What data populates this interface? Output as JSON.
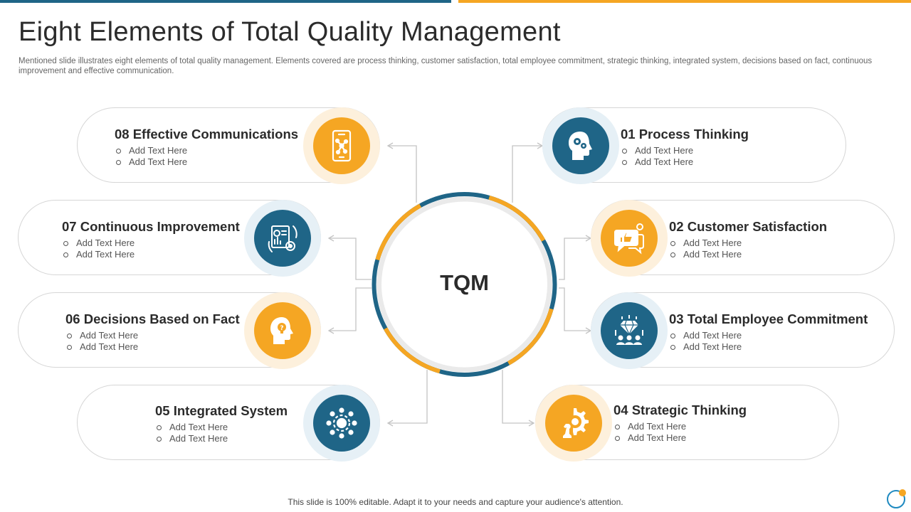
{
  "slide": {
    "title": "Eight Elements of Total Quality Management",
    "description": "Mentioned slide illustrates eight elements of total quality management. Elements covered are process thinking, customer satisfaction, total employee commitment, strategic thinking, integrated system, decisions based on fact, continuous improvement and effective communication.",
    "footer": "This slide is 100% editable. Adapt it to your needs and capture your audience's attention."
  },
  "center": {
    "label": "TQM"
  },
  "colors": {
    "blue": "#1f6587",
    "orange": "#f5a623",
    "arrow": "#c8c8c8",
    "border": "#d6d6d6"
  },
  "elements": {
    "e01": {
      "title": "01 Process Thinking",
      "bullets": [
        "Add Text Here",
        "Add Text Here"
      ],
      "icon": "head-gears-icon",
      "color": "blue"
    },
    "e02": {
      "title": "02 Customer Satisfaction",
      "bullets": [
        "Add Text Here",
        "Add Text Here"
      ],
      "icon": "thumbs-up-chat-icon",
      "color": "orange"
    },
    "e03": {
      "title": "03 Total Employee Commitment",
      "bullets": [
        "Add Text Here",
        "Add Text Here"
      ],
      "icon": "team-diamond-icon",
      "color": "blue"
    },
    "e04": {
      "title": "04 Strategic Thinking",
      "bullets": [
        "Add Text Here",
        "Add Text Here"
      ],
      "icon": "chess-strategy-icon",
      "color": "orange"
    },
    "e05": {
      "title": "05 Integrated System",
      "bullets": [
        "Add Text Here",
        "Add Text Here"
      ],
      "icon": "gear-network-icon",
      "color": "blue"
    },
    "e06": {
      "title": "06 Decisions Based on Fact",
      "bullets": [
        "Add Text Here",
        "Add Text Here"
      ],
      "icon": "head-idea-icon",
      "color": "orange"
    },
    "e07": {
      "title": "07 Continuous Improvement",
      "bullets": [
        "Add Text Here",
        "Add Text Here"
      ],
      "icon": "report-cycle-icon",
      "color": "blue"
    },
    "e08": {
      "title": "08 Effective Communications",
      "bullets": [
        "Add Text Here",
        "Add Text Here"
      ],
      "icon": "phone-network-icon",
      "color": "orange"
    }
  }
}
